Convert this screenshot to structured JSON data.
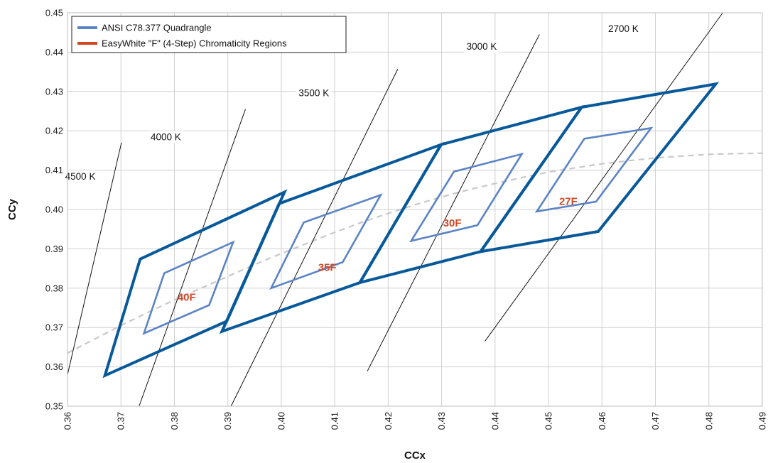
{
  "chart_data": {
    "type": "scatter",
    "title": "",
    "xlabel": "CCx",
    "ylabel": "CCy",
    "xlim": [
      0.36,
      0.49
    ],
    "ylim": [
      0.35,
      0.45
    ],
    "xticks": [
      0.36,
      0.37,
      0.38,
      0.39,
      0.4,
      0.41,
      0.42,
      0.43,
      0.44,
      0.45,
      0.46,
      0.47,
      0.48,
      0.49
    ],
    "xtick_labels": [
      "0.36",
      "0.37",
      "0.38",
      "0.39",
      "0.40",
      "0.41",
      "0.42",
      "0.43",
      "0.44",
      "0.45",
      "0.46",
      "0.47",
      "0.48",
      "0.49"
    ],
    "yticks": [
      0.35,
      0.36,
      0.37,
      0.38,
      0.39,
      0.4,
      0.41,
      0.42,
      0.43,
      0.44,
      0.45
    ],
    "ytick_labels": [
      "0.35",
      "0.36",
      "0.37",
      "0.38",
      "0.39",
      "0.40",
      "0.41",
      "0.42",
      "0.43",
      "0.44",
      "0.45"
    ],
    "grid": true,
    "legend": {
      "position": "top-left",
      "entries": [
        {
          "label": "ANSI C78.377 Quadrangle",
          "color": "#5b84c4"
        },
        {
          "label": "EasyWhite \"F\" (4-Step) Chromaticity Regions",
          "color": "#d04a28"
        }
      ]
    },
    "colors": {
      "ansi_quadrangle": "#08599a",
      "easywhite_region": "#5b84c4",
      "region_label": "#d04a28",
      "planckian_locus": "#c8c8c8",
      "isotherm": "#111111",
      "grid": "#d0d0d0"
    },
    "ansi_quadrangles": [
      {
        "name": "4000 K",
        "points": [
          [
            0.367,
            0.3578
          ],
          [
            0.3736,
            0.3874
          ],
          [
            0.4006,
            0.4044
          ],
          [
            0.3898,
            0.3716
          ]
        ]
      },
      {
        "name": "3500 K",
        "points": [
          [
            0.3889,
            0.369
          ],
          [
            0.3996,
            0.4015
          ],
          [
            0.4299,
            0.4165
          ],
          [
            0.4147,
            0.3814
          ]
        ]
      },
      {
        "name": "3000 K",
        "points": [
          [
            0.4147,
            0.3814
          ],
          [
            0.4299,
            0.4165
          ],
          [
            0.4562,
            0.426
          ],
          [
            0.4373,
            0.3893
          ]
        ]
      },
      {
        "name": "2700 K",
        "points": [
          [
            0.4373,
            0.3893
          ],
          [
            0.4562,
            0.426
          ],
          [
            0.4813,
            0.4319
          ],
          [
            0.4593,
            0.3944
          ]
        ]
      }
    ],
    "easywhite_regions": [
      {
        "label": "40F",
        "label_pos": [
          0.3823,
          0.3777
        ],
        "points": [
          [
            0.3743,
            0.3685
          ],
          [
            0.3781,
            0.3838
          ],
          [
            0.391,
            0.3917
          ],
          [
            0.3865,
            0.3757
          ]
        ]
      },
      {
        "label": "35F",
        "label_pos": [
          0.4086,
          0.3853
        ],
        "points": [
          [
            0.3981,
            0.38
          ],
          [
            0.4042,
            0.3967
          ],
          [
            0.4186,
            0.4037
          ],
          [
            0.4115,
            0.3866
          ]
        ]
      },
      {
        "label": "30F",
        "label_pos": [
          0.432,
          0.3966
        ],
        "points": [
          [
            0.4243,
            0.392
          ],
          [
            0.4323,
            0.4096
          ],
          [
            0.445,
            0.4141
          ],
          [
            0.4367,
            0.396
          ]
        ]
      },
      {
        "label": "27F",
        "label_pos": [
          0.4537,
          0.4021
        ],
        "points": [
          [
            0.4478,
            0.3995
          ],
          [
            0.4567,
            0.418
          ],
          [
            0.4692,
            0.4207
          ],
          [
            0.4589,
            0.402
          ]
        ]
      }
    ],
    "isotherms": [
      {
        "label": "4500 K",
        "label_pos": [
          0.3624,
          0.4085
        ],
        "from": [
          0.36,
          0.358
        ],
        "to": [
          0.3701,
          0.417
        ]
      },
      {
        "label": "4000 K",
        "label_pos": [
          0.3784,
          0.4185
        ],
        "from": [
          0.3734,
          0.35
        ],
        "to": [
          0.3933,
          0.4255
        ]
      },
      {
        "label": "3500 K",
        "label_pos": [
          0.4061,
          0.4297
        ],
        "from": [
          0.3906,
          0.35
        ],
        "to": [
          0.4218,
          0.4357
        ]
      },
      {
        "label": "3000 K",
        "label_pos": [
          0.4375,
          0.4415
        ],
        "from": [
          0.4161,
          0.3589
        ],
        "to": [
          0.4483,
          0.4445
        ]
      },
      {
        "label": "2700 K",
        "label_pos": [
          0.464,
          0.446
        ],
        "from": [
          0.4381,
          0.3665
        ],
        "to": [
          0.4826,
          0.45
        ]
      }
    ],
    "planckian_locus": [
      [
        0.36,
        0.3635
      ],
      [
        0.365,
        0.367
      ],
      [
        0.37,
        0.3705
      ],
      [
        0.375,
        0.3738
      ],
      [
        0.38,
        0.377
      ],
      [
        0.385,
        0.38
      ],
      [
        0.39,
        0.383
      ],
      [
        0.395,
        0.386
      ],
      [
        0.4,
        0.3888
      ],
      [
        0.405,
        0.3915
      ],
      [
        0.41,
        0.3942
      ],
      [
        0.415,
        0.3967
      ],
      [
        0.42,
        0.399
      ],
      [
        0.425,
        0.4012
      ],
      [
        0.43,
        0.4032
      ],
      [
        0.435,
        0.405
      ],
      [
        0.44,
        0.4066
      ],
      [
        0.445,
        0.4081
      ],
      [
        0.45,
        0.4095
      ],
      [
        0.455,
        0.4106
      ],
      [
        0.46,
        0.4116
      ],
      [
        0.465,
        0.4124
      ],
      [
        0.47,
        0.4131
      ],
      [
        0.475,
        0.4136
      ],
      [
        0.48,
        0.414
      ],
      [
        0.485,
        0.4142
      ],
      [
        0.49,
        0.4143
      ]
    ]
  }
}
